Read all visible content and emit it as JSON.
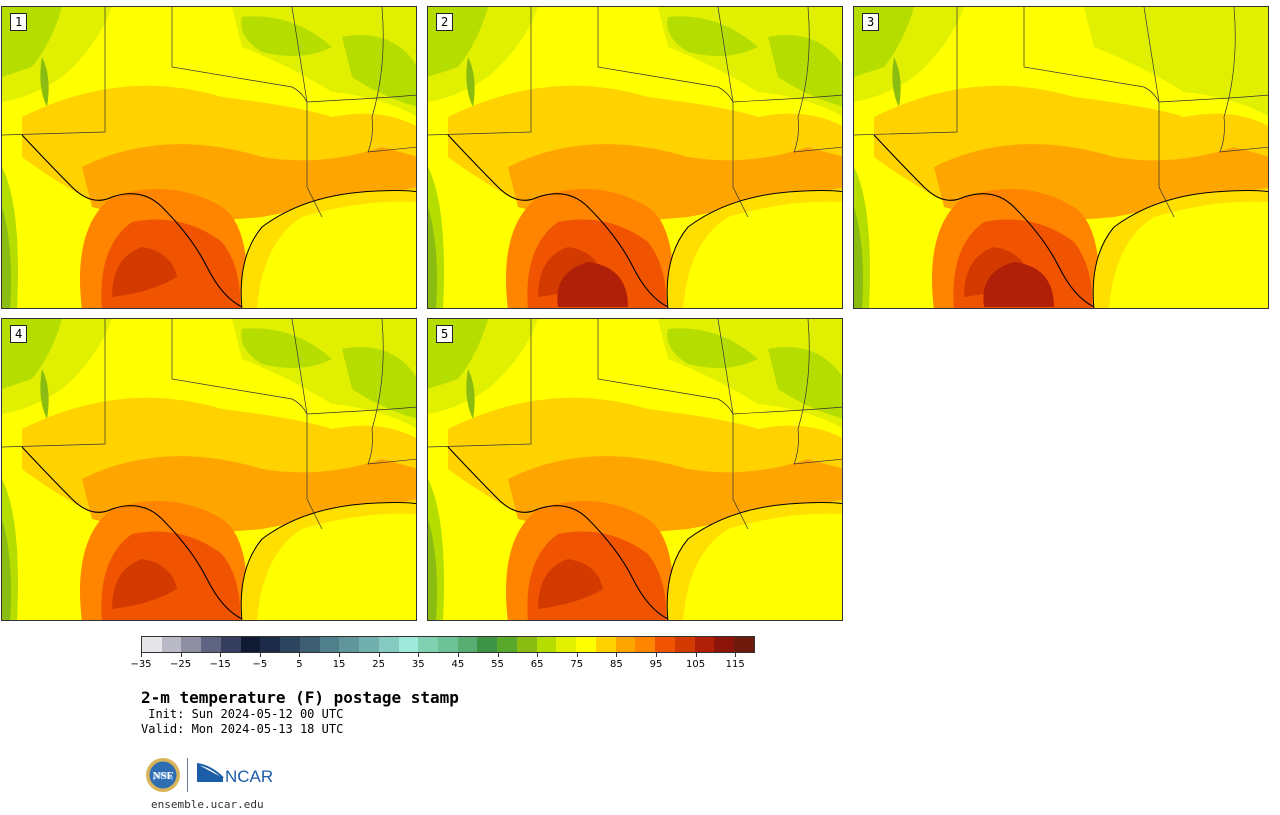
{
  "title": "2-m temperature (F) postage stamp",
  "init": " Init: Sun 2024-05-12 00 UTC",
  "valid": "Valid: Mon 2024-05-13 18 UTC",
  "url": "ensemble.ucar.edu",
  "logos": {
    "nsf": "NSF",
    "ncar": "NCAR"
  },
  "panels": [
    {
      "label": "1",
      "hot_level": 2,
      "north_green": 1
    },
    {
      "label": "2",
      "hot_level": 3,
      "north_green": 2
    },
    {
      "label": "3",
      "hot_level": 3,
      "north_green": 0
    },
    {
      "label": "4",
      "hot_level": 2,
      "north_green": 1
    },
    {
      "label": "5",
      "hot_level": 2,
      "north_green": 2
    }
  ],
  "colorbar": {
    "colors": [
      "#e6e6ea",
      "#b9bac6",
      "#8e90a2",
      "#5d6380",
      "#353e5e",
      "#101a33",
      "#1d2b48",
      "#2e4560",
      "#3d5e72",
      "#4f7f8a",
      "#5f959b",
      "#72b0ad",
      "#86cbc2",
      "#9ee9d9",
      "#7fd1b2",
      "#6cc196",
      "#57ad72",
      "#3d9446",
      "#58a82b",
      "#8abc11",
      "#b6dd00",
      "#e1f000",
      "#ffff00",
      "#ffd200",
      "#ffa500",
      "#ff8400",
      "#f05400",
      "#d23a00",
      "#b01f08",
      "#8c1408",
      "#6e1a0c"
    ],
    "tick_labels": [
      "−35",
      "−25",
      "−15",
      "−5",
      "5",
      "15",
      "25",
      "35",
      "45",
      "55",
      "65",
      "75",
      "85",
      "95",
      "105",
      "115"
    ]
  },
  "colors": {
    "yellow": "#ffff00",
    "yellow_green": "#e1f000",
    "light_green": "#b6dd00",
    "green": "#8abc11",
    "dark_green": "#58a82b",
    "gold": "#ffd200",
    "orange": "#ffa500",
    "dark_orange": "#ff8400",
    "red_orange": "#f05400",
    "red": "#d23a00",
    "dark_red": "#b01f08",
    "gulf": "#ffff00",
    "gulf_edge": "#ffd200",
    "border": "#333333"
  }
}
